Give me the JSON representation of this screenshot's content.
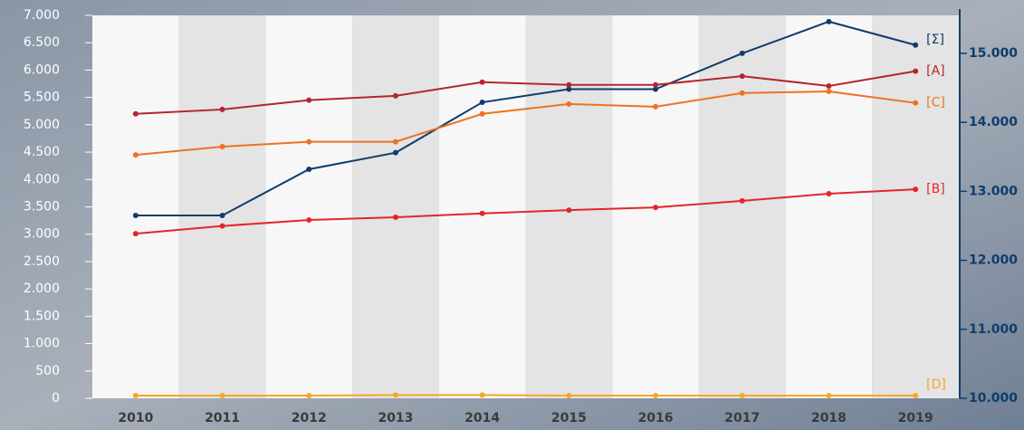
{
  "chart_data": {
    "type": "line",
    "categories": [
      "2010",
      "2011",
      "2012",
      "2013",
      "2014",
      "2015",
      "2016",
      "2017",
      "2018",
      "2019"
    ],
    "series": [
      {
        "name": "[Σ]",
        "color": "#0e3d6b",
        "axis": "y2",
        "values": [
          12650,
          12650,
          13320,
          13560,
          14290,
          14480,
          14480,
          15000,
          15460,
          15120
        ]
      },
      {
        "name": "[A]",
        "color": "#b3262f",
        "values": [
          5200,
          5280,
          5450,
          5530,
          5780,
          5730,
          5730,
          5890,
          5710,
          5980
        ]
      },
      {
        "name": "[C]",
        "color": "#ee7223",
        "values": [
          4450,
          4600,
          4690,
          4690,
          5200,
          5380,
          5330,
          5580,
          5610,
          5400
        ]
      },
      {
        "name": "[B]",
        "color": "#e3262a",
        "values": [
          3010,
          3150,
          3260,
          3310,
          3380,
          3440,
          3490,
          3610,
          3740,
          3820
        ]
      },
      {
        "name": "[D]",
        "color": "#f5a623",
        "values": [
          50,
          50,
          50,
          60,
          60,
          50,
          50,
          50,
          50,
          50
        ]
      }
    ],
    "ylim": [
      0,
      7000
    ],
    "yticks": [
      0,
      500,
      {
        "value": 1000,
        "label": "1.000"
      },
      {
        "value": 1500,
        "label": "1.500"
      },
      {
        "value": 2000,
        "label": "2.000"
      },
      {
        "value": 2500,
        "label": "2.500"
      },
      {
        "value": 3000,
        "label": "3.000"
      },
      {
        "value": 3500,
        "label": "3.500"
      },
      {
        "value": 4000,
        "label": "4.000"
      },
      {
        "value": 4500,
        "label": "4.500"
      },
      {
        "value": 5000,
        "label": "5.000"
      },
      {
        "value": 5500,
        "label": "5.500"
      },
      {
        "value": 6000,
        "label": "6.000"
      },
      {
        "value": 6500,
        "label": "6.500"
      },
      {
        "value": 7000,
        "label": "7.000"
      }
    ],
    "y2lim": [
      10000,
      15550
    ],
    "y2ticks": [
      {
        "value": 10000,
        "label": "10.000"
      },
      {
        "value": 11000,
        "label": "11.000"
      },
      {
        "value": 12000,
        "label": "12.000"
      },
      {
        "value": 13000,
        "label": "13.000"
      },
      {
        "value": 14000,
        "label": "14.000"
      },
      {
        "value": 15000,
        "label": "15.000"
      }
    ]
  }
}
